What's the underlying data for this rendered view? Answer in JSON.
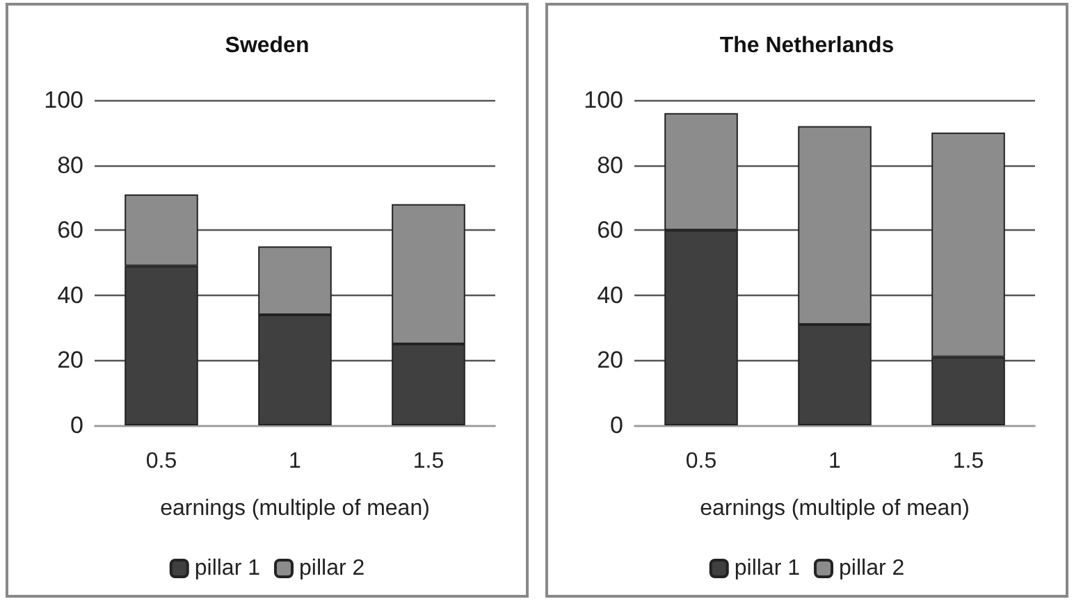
{
  "chart_data": [
    {
      "type": "bar",
      "title": "Sweden",
      "xlabel": "earnings (multiple of mean)",
      "categories": [
        "0.5",
        "1",
        "1.5"
      ],
      "stacked": true,
      "ylim": [
        0,
        100
      ],
      "yticks": [
        0,
        20,
        40,
        60,
        80,
        100
      ],
      "grid": "y",
      "legend": "bottom",
      "series": [
        {
          "name": "pillar 1",
          "color": "#404040",
          "values": [
            49,
            34,
            25
          ]
        },
        {
          "name": "pillar 2",
          "color": "#8c8c8c",
          "values": [
            22,
            21,
            43
          ]
        }
      ]
    },
    {
      "type": "bar",
      "title": "The Netherlands",
      "xlabel": "earnings (multiple of mean)",
      "categories": [
        "0.5",
        "1",
        "1.5"
      ],
      "stacked": true,
      "ylim": [
        0,
        100
      ],
      "yticks": [
        0,
        20,
        40,
        60,
        80,
        100
      ],
      "grid": "y",
      "legend": "bottom",
      "series": [
        {
          "name": "pillar 1",
          "color": "#404040",
          "values": [
            60,
            31,
            21
          ]
        },
        {
          "name": "pillar 2",
          "color": "#8c8c8c",
          "values": [
            36,
            61,
            69
          ]
        }
      ]
    }
  ]
}
